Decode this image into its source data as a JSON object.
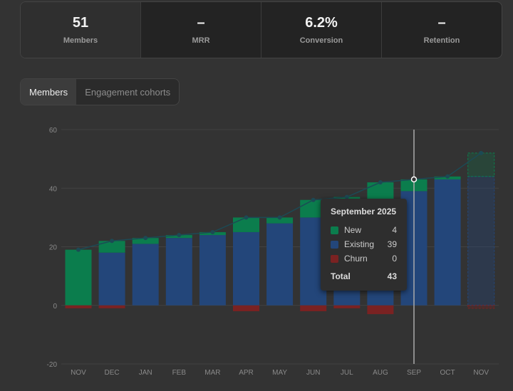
{
  "kpis": [
    {
      "value": "51",
      "label": "Members"
    },
    {
      "value": "–",
      "label": "MRR"
    },
    {
      "value": "6.2%",
      "label": "Conversion"
    },
    {
      "value": "–",
      "label": "Retention"
    }
  ],
  "tabs": [
    {
      "label": "Members",
      "active": true
    },
    {
      "label": "Engagement cohorts",
      "active": false
    }
  ],
  "colors": {
    "new": "#0b7d4d",
    "existing": "#23467a",
    "churn": "#7a2222",
    "line": "#1c4a55"
  },
  "chart_data": {
    "type": "bar",
    "stacked": true,
    "categories": [
      "NOV",
      "DEC",
      "JAN",
      "FEB",
      "MAR",
      "APR",
      "MAY",
      "JUN",
      "JUL",
      "AUG",
      "SEP",
      "OCT",
      "NOV"
    ],
    "projected": [
      false,
      false,
      false,
      false,
      false,
      false,
      false,
      false,
      false,
      false,
      false,
      false,
      true
    ],
    "series": [
      {
        "name": "New",
        "values": [
          19,
          4,
          2,
          1,
          1,
          5,
          2,
          6,
          3,
          6,
          4,
          1,
          8
        ]
      },
      {
        "name": "Existing",
        "values": [
          0,
          18,
          21,
          23,
          24,
          25,
          28,
          30,
          34,
          36,
          39,
          43,
          44
        ]
      },
      {
        "name": "Churn",
        "values": [
          -1,
          -1,
          0,
          0,
          0,
          -2,
          0,
          -2,
          -1,
          -3,
          0,
          0,
          -1
        ]
      }
    ],
    "line": {
      "name": "Total",
      "values": [
        19,
        22,
        23,
        24,
        25,
        30,
        30,
        36,
        37,
        42,
        43,
        44,
        52
      ]
    },
    "ylim": [
      -20,
      60
    ],
    "yticks": [
      60,
      40,
      20,
      0,
      -20
    ],
    "grid": true,
    "highlight_index": 10,
    "tooltip": {
      "title": "September 2025",
      "rows": [
        {
          "label": "New",
          "value": "4"
        },
        {
          "label": "Existing",
          "value": "39"
        },
        {
          "label": "Churn",
          "value": "0"
        }
      ],
      "total_label": "Total",
      "total_value": "43"
    }
  }
}
